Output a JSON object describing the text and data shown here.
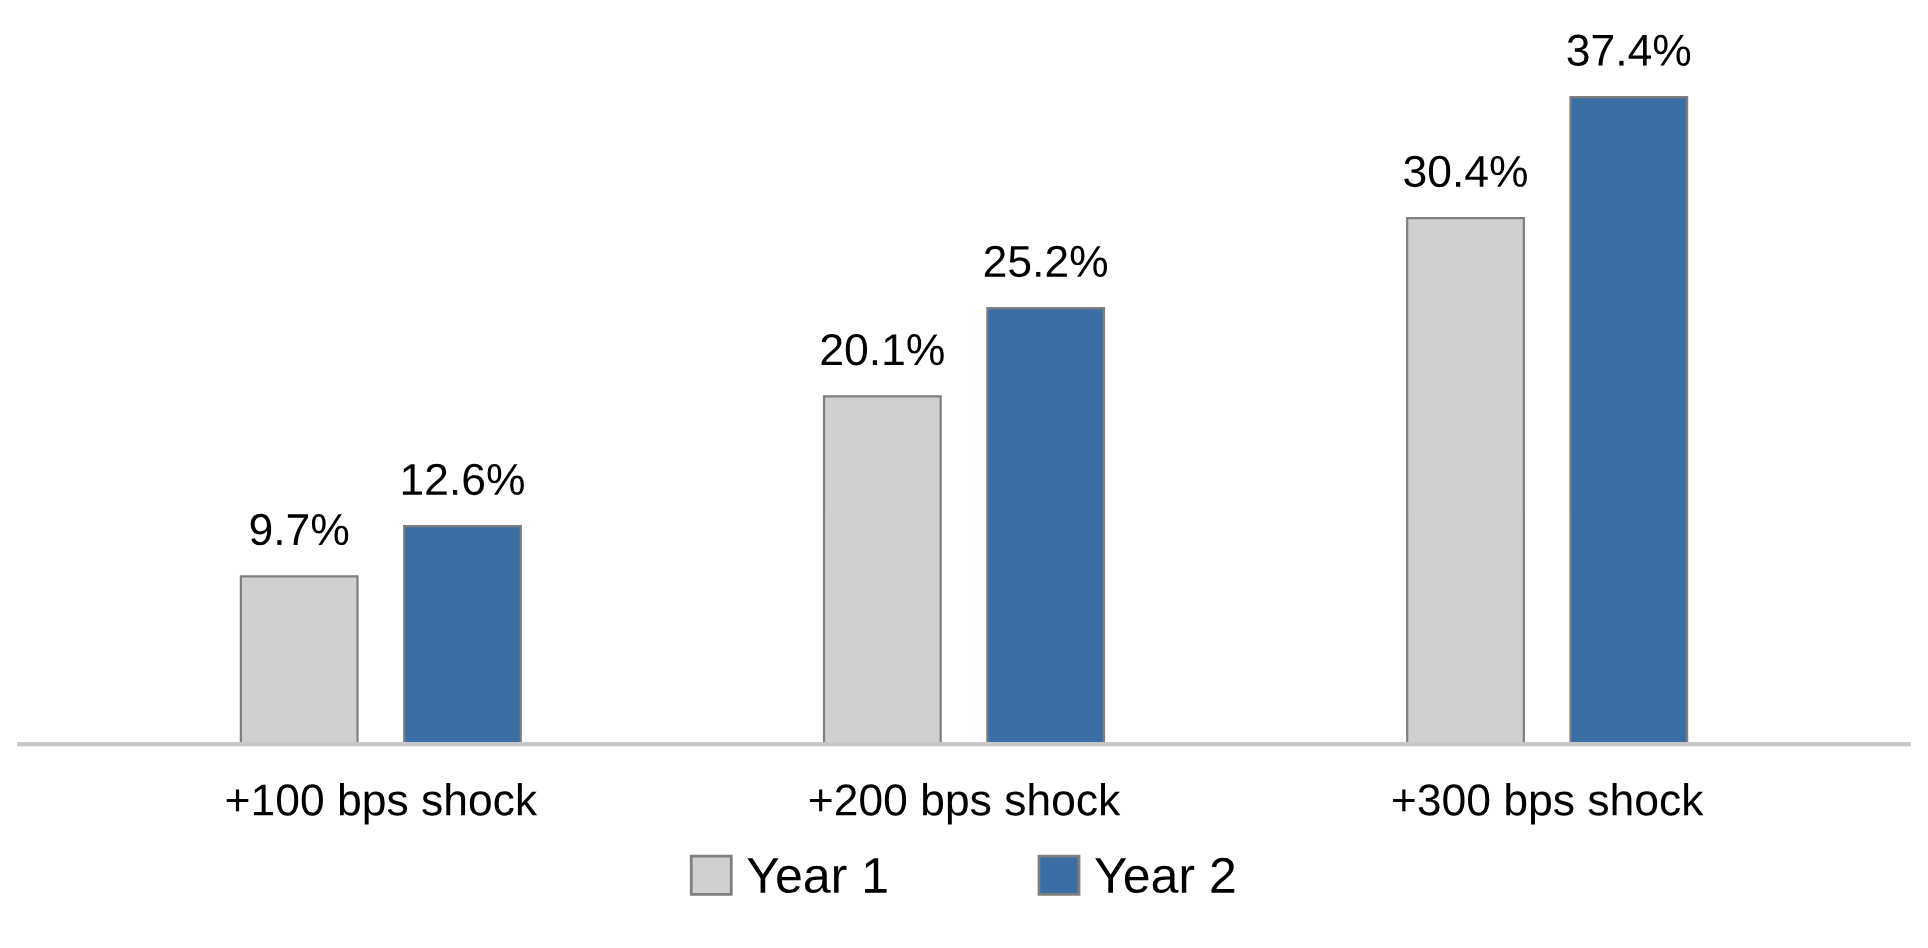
{
  "chart_data": {
    "type": "bar",
    "categories": [
      "+100 bps shock",
      "+200 bps shock",
      "+300 bps shock"
    ],
    "series": [
      {
        "name": "Year 1",
        "color": "#d0d0d0",
        "values": [
          9.7,
          20.1,
          30.4
        ],
        "value_labels": [
          "9.7%",
          "20.1%",
          "30.4%"
        ]
      },
      {
        "name": "Year 2",
        "color": "#3b6ea5",
        "values": [
          12.6,
          25.2,
          37.4
        ],
        "value_labels": [
          "12.6%",
          "25.2%",
          "37.4%"
        ]
      }
    ],
    "legend": "bottom",
    "grid": false
  }
}
